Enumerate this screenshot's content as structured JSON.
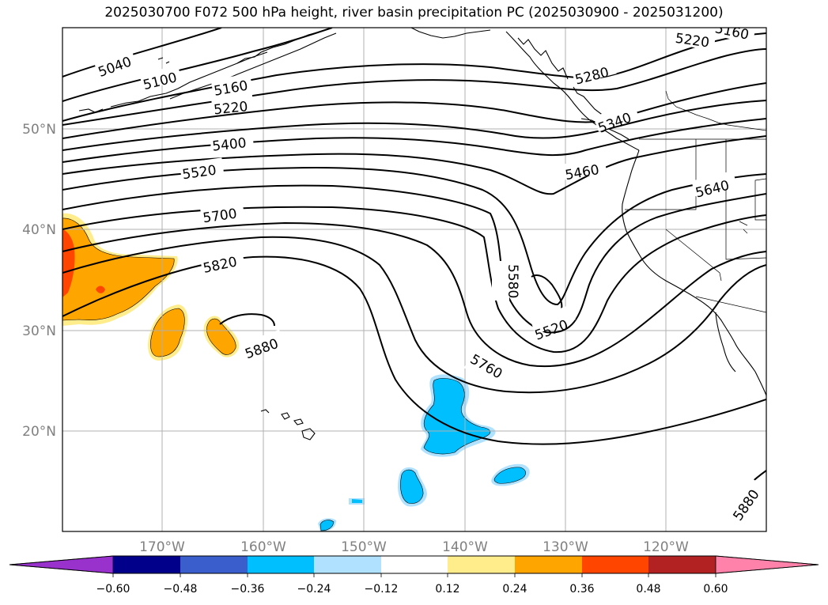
{
  "title": "2025030700 F072 500 hPa height, river basin precipitation PC (2025030900 - 2025031200)",
  "lat_labels": [
    "50°N",
    "40°N",
    "30°N",
    "20°N"
  ],
  "lon_labels": [
    "170°W",
    "160°W",
    "150°W",
    "140°W",
    "130°W",
    "120°W"
  ],
  "contour_labels": [
    "5040",
    "5100",
    "5160",
    "5220",
    "5400",
    "5520",
    "5700",
    "5820",
    "5880",
    "5160",
    "5220",
    "5280",
    "5340",
    "5460",
    "5640",
    "5580",
    "5520",
    "5760",
    "5880"
  ],
  "colorbar": {
    "ticks": [
      "−0.60",
      "−0.48",
      "−0.36",
      "−0.24",
      "−0.12",
      "0.12",
      "0.24",
      "0.36",
      "0.48",
      "0.60"
    ],
    "colors": [
      "#9932cc",
      "#00008b",
      "#3a5fcd",
      "#00bfff",
      "#b0e2ff",
      "#ffffff",
      "#ffec8b",
      "#ffa500",
      "#ff4500",
      "#b22222",
      "#ff82ab"
    ]
  },
  "chart_data": {
    "type": "map",
    "title": "2025030700 F072 500 hPa height, river basin precipitation PC (2025030900 - 2025031200)",
    "lat_ticks": [
      50,
      40,
      30,
      20
    ],
    "lon_ticks": [
      -170,
      -160,
      -150,
      -140,
      -130,
      -120
    ],
    "contour_levels": [
      5040,
      5100,
      5160,
      5220,
      5280,
      5340,
      5400,
      5460,
      5520,
      5580,
      5640,
      5700,
      5760,
      5820,
      5880
    ],
    "colorbar_levels": [
      -0.6,
      -0.48,
      -0.36,
      -0.24,
      -0.12,
      0.12,
      0.24,
      0.36,
      0.48,
      0.6
    ],
    "grid": true
  }
}
